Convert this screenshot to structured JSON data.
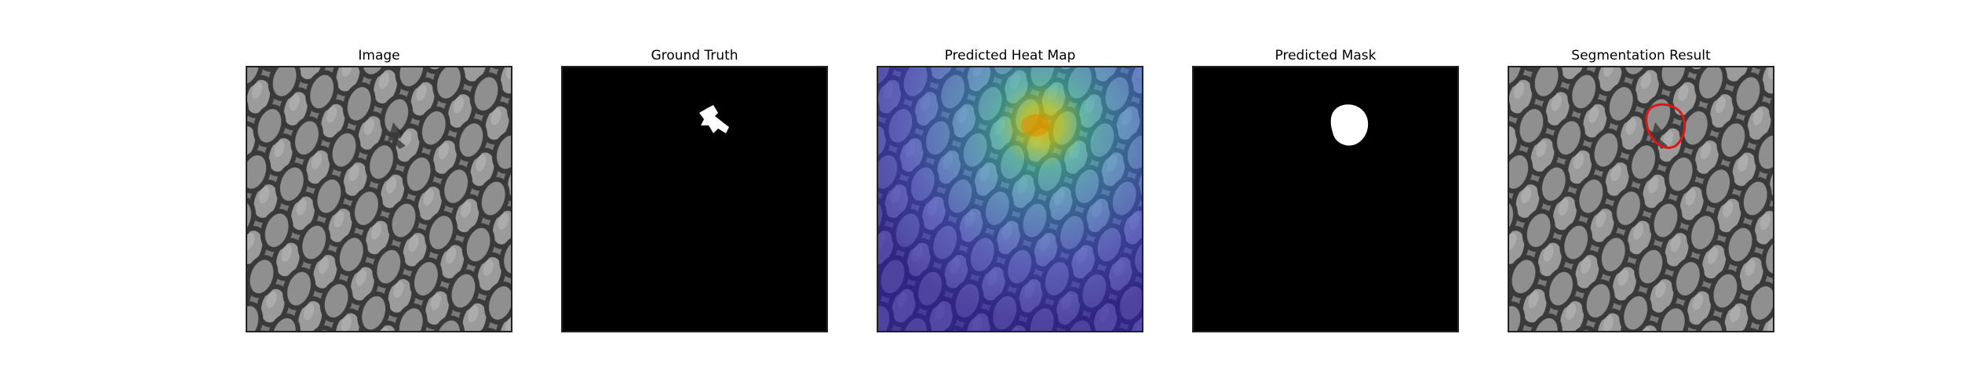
{
  "figure": {
    "panels": [
      {
        "title": "Image"
      },
      {
        "title": "Ground Truth"
      },
      {
        "title": "Predicted Heat Map"
      },
      {
        "title": "Predicted Mask"
      },
      {
        "title": "Segmentation Result"
      }
    ]
  },
  "colors": {
    "background": "#ffffff",
    "contour": "#e01515",
    "mask": "#ffffff",
    "mask_background": "#000000"
  }
}
